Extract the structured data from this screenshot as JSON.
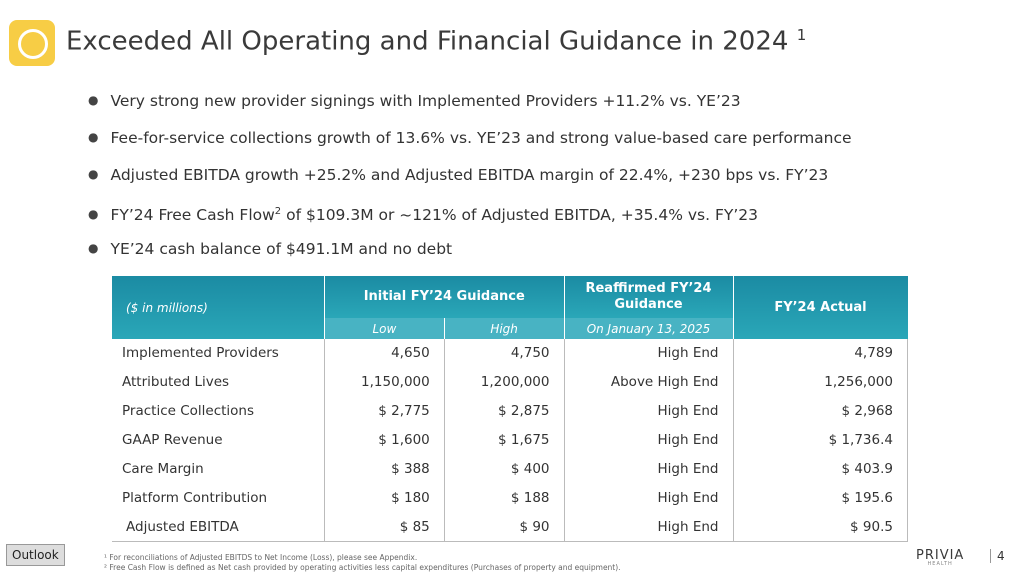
{
  "header": {
    "title": "Exceeded All Operating and Financial Guidance in 2024",
    "title_note": "1"
  },
  "bullets": [
    {
      "text": "Very strong new provider signings with Implemented Providers +11.2% vs. YE’23"
    },
    {
      "text": "Fee-for-service collections growth of 13.6% vs. YE’23 and strong value-based care performance"
    },
    {
      "text": "Adjusted EBITDA growth +25.2% and Adjusted EBITDA margin of 22.4%, +230 bps vs. FY’23"
    },
    {
      "text": "FY’24 Free Cash Flow",
      "note": "2",
      "after": " of $109.3M or ~121% of Adjusted EBITDA, +35.4% vs. FY’23"
    },
    {
      "text": "YE’24 cash balance of $491.1M and no debt"
    }
  ],
  "table": {
    "units": "($ in millions)",
    "group_initial": "Initial FY’24 Guidance",
    "group_reaffirmed": "Reaffirmed FY’24 Guidance",
    "group_actual": "FY’24 Actual",
    "sub": [
      "Low",
      "High",
      "On January 13, 2025"
    ],
    "rows": [
      [
        "Implemented Providers",
        "4,650",
        "4,750",
        "High End",
        "4,789"
      ],
      [
        "Attributed Lives",
        "1,150,000",
        "1,200,000",
        "Above High End",
        "1,256,000"
      ],
      [
        "Practice Collections",
        "$ 2,775",
        "$ 2,875",
        "High End",
        "$ 2,968"
      ],
      [
        "GAAP Revenue",
        "$ 1,600",
        "$ 1,675",
        "High End",
        "$ 1,736.4"
      ],
      [
        "Care Margin",
        "$ 388",
        "$ 400",
        "High End",
        "$ 403.9"
      ],
      [
        "Platform Contribution",
        "$ 180",
        "$ 188",
        "High End",
        "$ 195.6"
      ],
      [
        "Adjusted EBITDA",
        "$ 85",
        "$ 90",
        "High End",
        "$ 90.5"
      ]
    ]
  },
  "footnotes": [
    "¹ For reconciliations of Adjusted EBITDS to Net Income (Loss), please see Appendix.",
    "² Free Cash Flow is defined as Net cash provided by operating activities less capital expenditures (Purchases of property and equipment)."
  ],
  "footer": {
    "button": "Outlook",
    "logo": "PRIVIA",
    "logo_sub": "HEALTH",
    "page": "4"
  }
}
